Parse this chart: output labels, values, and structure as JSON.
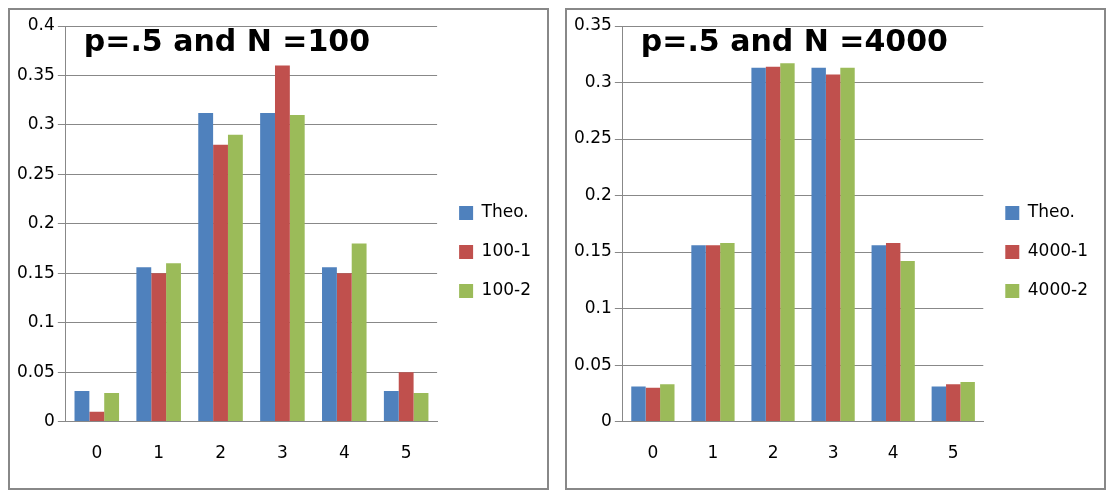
{
  "chart_data": [
    {
      "type": "bar",
      "title": "p=.5 and N =100",
      "categories": [
        "0",
        "1",
        "2",
        "3",
        "4",
        "5"
      ],
      "series": [
        {
          "name": "Theo.",
          "color": "#4f81bd",
          "values": [
            0.031,
            0.156,
            0.312,
            0.312,
            0.156,
            0.031
          ]
        },
        {
          "name": "100-1",
          "color": "#c0504d",
          "values": [
            0.01,
            0.15,
            0.28,
            0.36,
            0.15,
            0.05
          ]
        },
        {
          "name": "100-2",
          "color": "#9bbb59",
          "values": [
            0.029,
            0.16,
            0.29,
            0.31,
            0.18,
            0.029
          ]
        }
      ],
      "ylim": [
        0,
        0.4
      ],
      "yticks": [
        0,
        0.05,
        0.1,
        0.15,
        0.2,
        0.25,
        0.3,
        0.35,
        0.4
      ],
      "grid": "y",
      "legend": "right"
    },
    {
      "type": "bar",
      "title": "p=.5 and N =4000",
      "categories": [
        "0",
        "1",
        "2",
        "3",
        "4",
        "5"
      ],
      "series": [
        {
          "name": "Theo.",
          "color": "#4f81bd",
          "values": [
            0.031,
            0.156,
            0.313,
            0.313,
            0.156,
            0.031
          ]
        },
        {
          "name": "4000-1",
          "color": "#c0504d",
          "values": [
            0.03,
            0.156,
            0.314,
            0.307,
            0.158,
            0.033
          ]
        },
        {
          "name": "4000-2",
          "color": "#9bbb59",
          "values": [
            0.033,
            0.158,
            0.317,
            0.313,
            0.142,
            0.035
          ]
        }
      ],
      "ylim": [
        0,
        0.35
      ],
      "yticks": [
        0,
        0.05,
        0.1,
        0.15,
        0.2,
        0.25,
        0.3,
        0.35
      ],
      "grid": "y",
      "legend": "right"
    }
  ]
}
